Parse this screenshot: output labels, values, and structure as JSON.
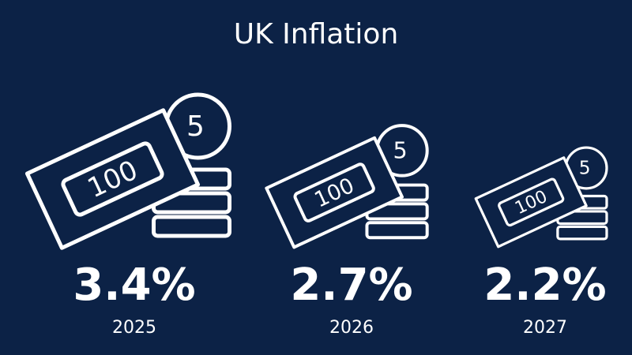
{
  "chart_data": {
    "type": "pictogram",
    "title": "UK Inflation",
    "categories": [
      "2025",
      "2026",
      "2027"
    ],
    "values": [
      3.4,
      2.7,
      2.2
    ],
    "value_labels": [
      "3.4%",
      "2.7%",
      "2.2%"
    ],
    "note_text": "100",
    "coin_text": "5",
    "color": "#ffffff",
    "background": "#0c2246"
  }
}
